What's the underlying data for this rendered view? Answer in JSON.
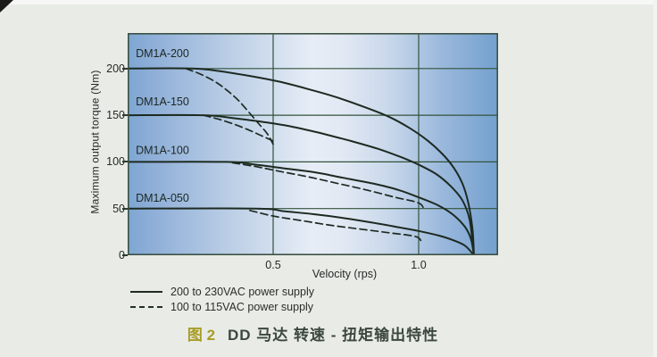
{
  "figure_caption": {
    "number": "图 2",
    "title": "DD 马达  转速 - 扭矩输出特性",
    "number_color": "#a89d25",
    "title_color": "#3b473f"
  },
  "chart_data": {
    "type": "line",
    "title": "",
    "xlabel": "Velocity (rps)",
    "ylabel": "Maximum output torque (Nm)",
    "xlim": [
      0,
      1.273
    ],
    "ylim": [
      0,
      238
    ],
    "grid": true,
    "legend_position": "below-left",
    "x_ticks": [
      {
        "v": 0.5,
        "label": "0.5"
      },
      {
        "v": 1.0,
        "label": "1.0"
      }
    ],
    "y_ticks": [
      {
        "t": 0,
        "label": "0"
      },
      {
        "t": 50,
        "label": "50"
      },
      {
        "t": 100,
        "label": "100"
      },
      {
        "t": 150,
        "label": "150"
      },
      {
        "t": 200,
        "label": "200"
      }
    ],
    "legend": [
      {
        "style": "solid",
        "label": "200 to 230VAC power supply"
      },
      {
        "style": "dashed",
        "label": "100 to 115VAC power supply"
      }
    ],
    "plot_colors": {
      "gradient_left": "#7ea6d2",
      "gradient_mid": "#e7edf6",
      "gradient_right": "#73a0cf",
      "grid": "#33523a",
      "curve": "#1d2a21"
    },
    "curve_labels": [
      {
        "text": "DM1A-200",
        "v": 0.028,
        "t": 212
      },
      {
        "text": "DM1A-150",
        "v": 0.028,
        "t": 160.5
      },
      {
        "text": "DM1A-100",
        "v": 0.028,
        "t": 108.5
      },
      {
        "text": "DM1A-050",
        "v": 0.028,
        "t": 57.5
      }
    ],
    "series": [
      {
        "model": "DM1A-200",
        "supply": "200 to 230VAC",
        "style": "solid",
        "points": [
          [
            0,
            200
          ],
          [
            0.22,
            200
          ],
          [
            0.32,
            197
          ],
          [
            0.42,
            192
          ],
          [
            0.52,
            186
          ],
          [
            0.62,
            178
          ],
          [
            0.72,
            169
          ],
          [
            0.82,
            158
          ],
          [
            0.9,
            148
          ],
          [
            0.97,
            136
          ],
          [
            1.03,
            123
          ],
          [
            1.08,
            109
          ],
          [
            1.12,
            94
          ],
          [
            1.15,
            77
          ],
          [
            1.17,
            57
          ],
          [
            1.185,
            28
          ],
          [
            1.19,
            0
          ]
        ]
      },
      {
        "model": "DM1A-200",
        "supply": "100 to 115VAC",
        "style": "dashed",
        "points": [
          [
            0.2,
            200
          ],
          [
            0.25,
            194
          ],
          [
            0.3,
            186
          ],
          [
            0.34,
            177
          ],
          [
            0.38,
            166
          ],
          [
            0.42,
            152
          ],
          [
            0.45,
            141
          ],
          [
            0.48,
            130
          ],
          [
            0.5,
            119
          ]
        ]
      },
      {
        "model": "DM1A-150",
        "supply": "200 to 230VAC",
        "style": "solid",
        "points": [
          [
            0,
            150
          ],
          [
            0.26,
            150
          ],
          [
            0.36,
            147
          ],
          [
            0.46,
            143
          ],
          [
            0.56,
            138
          ],
          [
            0.66,
            131
          ],
          [
            0.76,
            123
          ],
          [
            0.86,
            114
          ],
          [
            0.94,
            105
          ],
          [
            1.0,
            97
          ],
          [
            1.06,
            87
          ],
          [
            1.11,
            74
          ],
          [
            1.15,
            59
          ],
          [
            1.175,
            38
          ],
          [
            1.19,
            0
          ]
        ]
      },
      {
        "model": "DM1A-150",
        "supply": "100 to 115VAC",
        "style": "dashed",
        "points": [
          [
            0.26,
            150
          ],
          [
            0.31,
            146
          ],
          [
            0.36,
            141
          ],
          [
            0.41,
            135
          ],
          [
            0.46,
            128
          ],
          [
            0.51,
            121
          ]
        ]
      },
      {
        "model": "DM1A-100",
        "supply": "200 to 230VAC",
        "style": "solid",
        "points": [
          [
            0,
            100
          ],
          [
            0.34,
            100
          ],
          [
            0.44,
            97
          ],
          [
            0.54,
            93
          ],
          [
            0.64,
            89
          ],
          [
            0.74,
            83
          ],
          [
            0.84,
            77
          ],
          [
            0.93,
            70
          ],
          [
            1.0,
            62
          ],
          [
            1.07,
            53
          ],
          [
            1.12,
            43
          ],
          [
            1.16,
            30
          ],
          [
            1.18,
            17
          ],
          [
            1.19,
            0
          ]
        ]
      },
      {
        "model": "DM1A-100",
        "supply": "100 to 115VAC",
        "style": "dashed",
        "points": [
          [
            0.36,
            99
          ],
          [
            0.44,
            95
          ],
          [
            0.52,
            90
          ],
          [
            0.62,
            84
          ],
          [
            0.72,
            77
          ],
          [
            0.82,
            70
          ],
          [
            0.92,
            62
          ],
          [
            1.0,
            56
          ],
          [
            1.02,
            48
          ]
        ]
      },
      {
        "model": "DM1A-050",
        "supply": "200 to 230VAC",
        "style": "solid",
        "points": [
          [
            0,
            50
          ],
          [
            0.44,
            50
          ],
          [
            0.54,
            47
          ],
          [
            0.64,
            44
          ],
          [
            0.74,
            40
          ],
          [
            0.84,
            35
          ],
          [
            0.93,
            30
          ],
          [
            1.0,
            26
          ],
          [
            1.07,
            21
          ],
          [
            1.12,
            16
          ],
          [
            1.16,
            10
          ],
          [
            1.19,
            0
          ]
        ]
      },
      {
        "model": "DM1A-050",
        "supply": "100 to 115VAC",
        "style": "dashed",
        "points": [
          [
            0.42,
            48
          ],
          [
            0.5,
            42
          ],
          [
            0.6,
            37
          ],
          [
            0.7,
            32
          ],
          [
            0.8,
            28
          ],
          [
            0.9,
            24
          ],
          [
            0.99,
            20
          ],
          [
            1.01,
            14
          ]
        ]
      }
    ]
  }
}
